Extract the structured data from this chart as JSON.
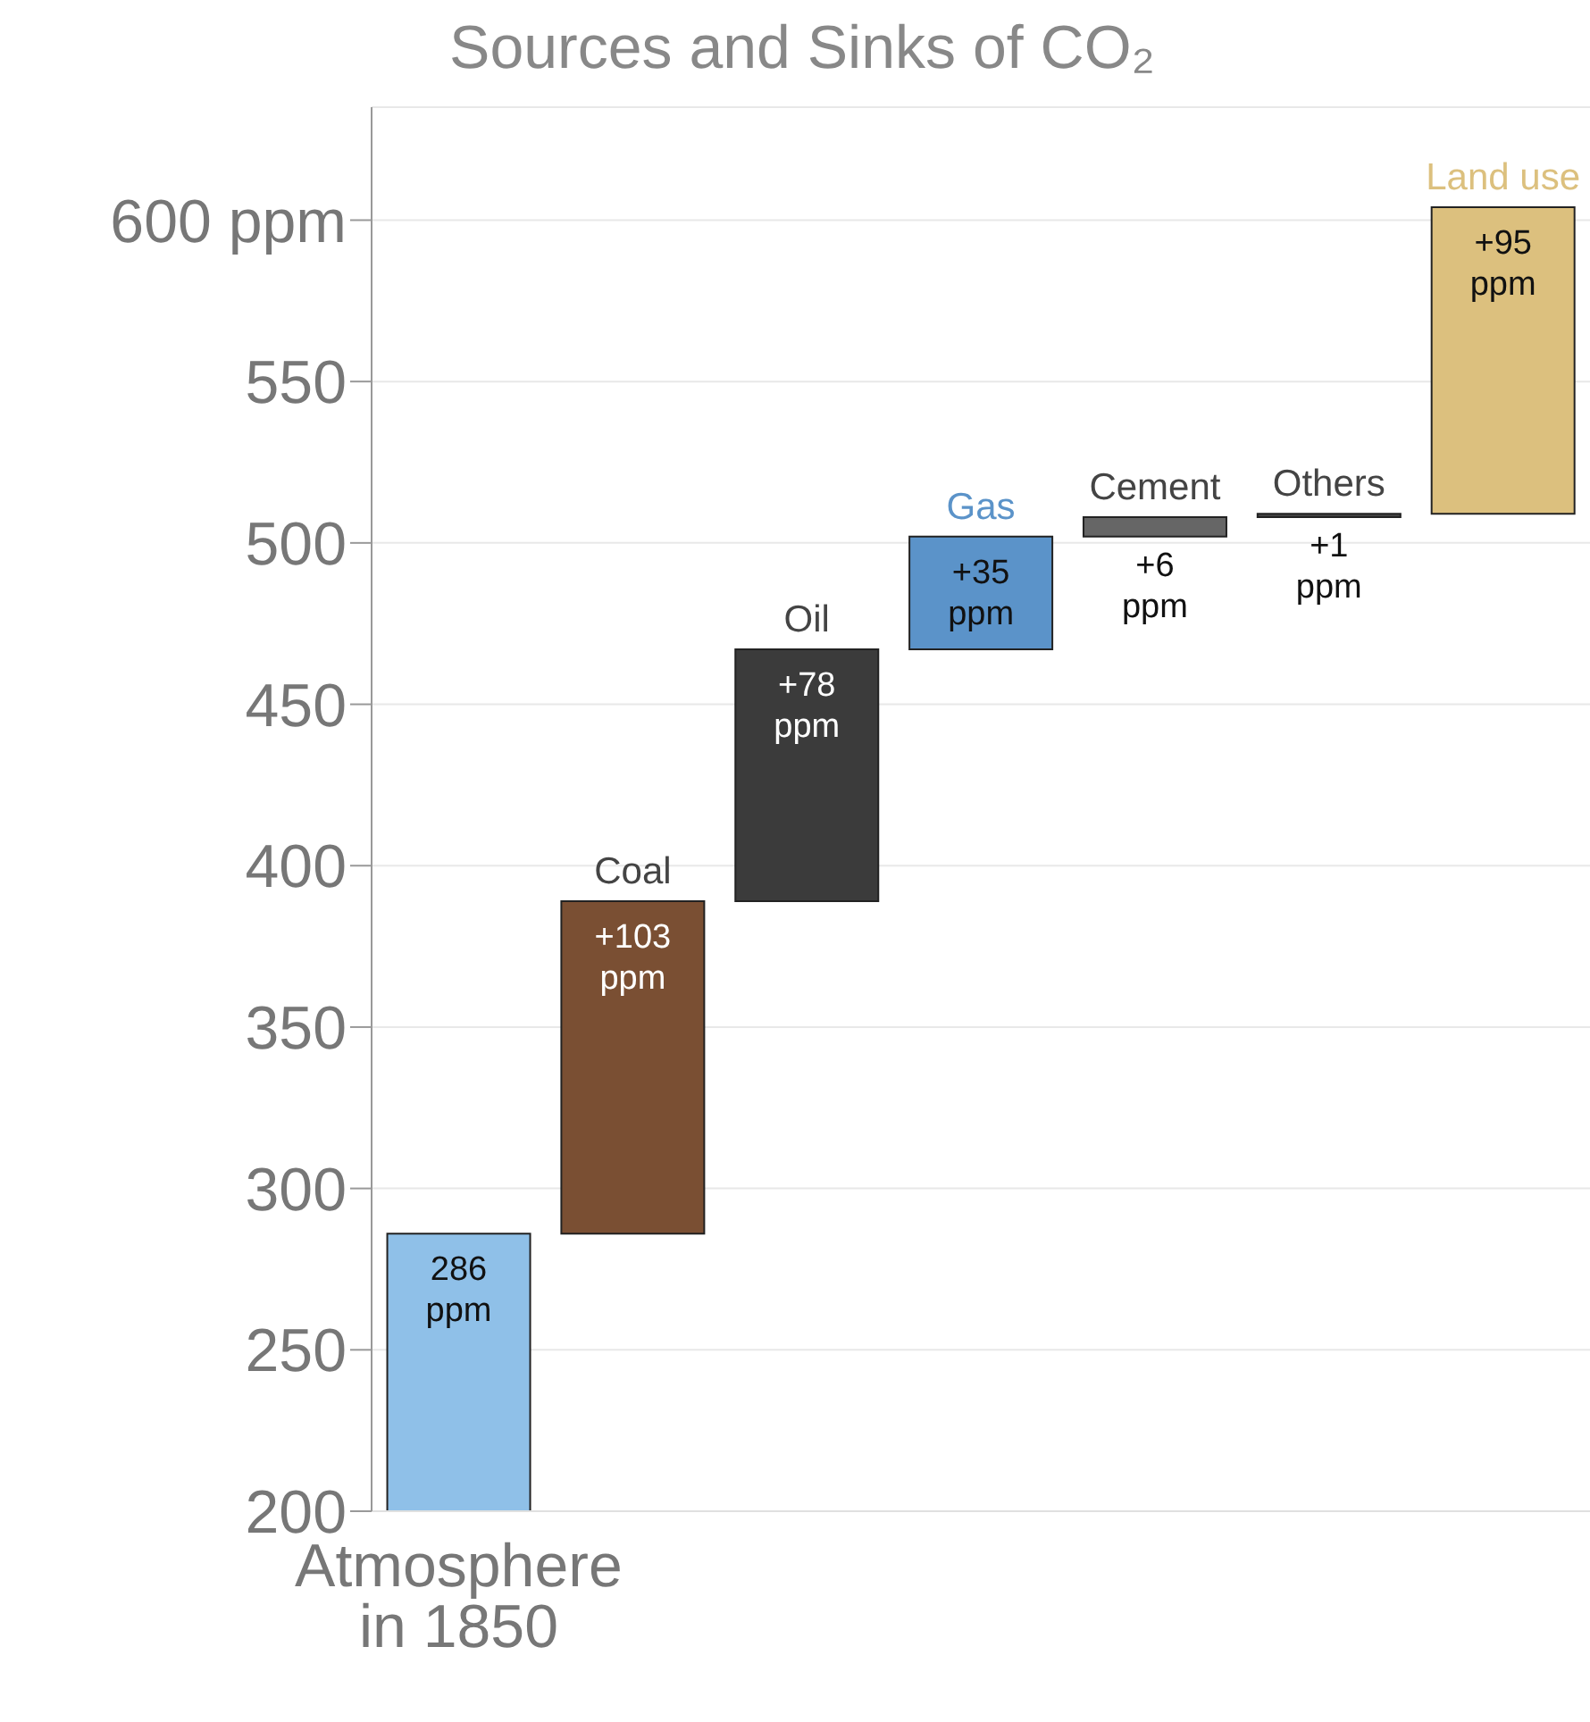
{
  "chart_data": {
    "type": "bar",
    "title": "Sources and Sinks of CO₂",
    "categories": [
      "Atmosphere in 1850",
      "Coal",
      "Oil",
      "Gas",
      "Cement",
      "Others",
      "Land use"
    ],
    "base": [
      200,
      286,
      389,
      467,
      502,
      508,
      509
    ],
    "values": [
      86,
      103,
      78,
      35,
      6,
      1,
      95
    ],
    "value_labels": [
      "286 ppm",
      "+103 ppm",
      "+78 ppm",
      "+35 ppm",
      "+6 ppm",
      "+1 ppm",
      "+95 ppm"
    ],
    "colors": [
      "#8fc0e8",
      "#7a4f33",
      "#3b3b3b",
      "#5b93c9",
      "#666666",
      "#444444",
      "#dcc07e"
    ],
    "ylim": [
      200,
      635
    ],
    "yticks": [
      200,
      250,
      300,
      350,
      400,
      450,
      500,
      550,
      {
        "value": 600,
        "label": "600 ppm"
      }
    ],
    "grid": "y"
  }
}
